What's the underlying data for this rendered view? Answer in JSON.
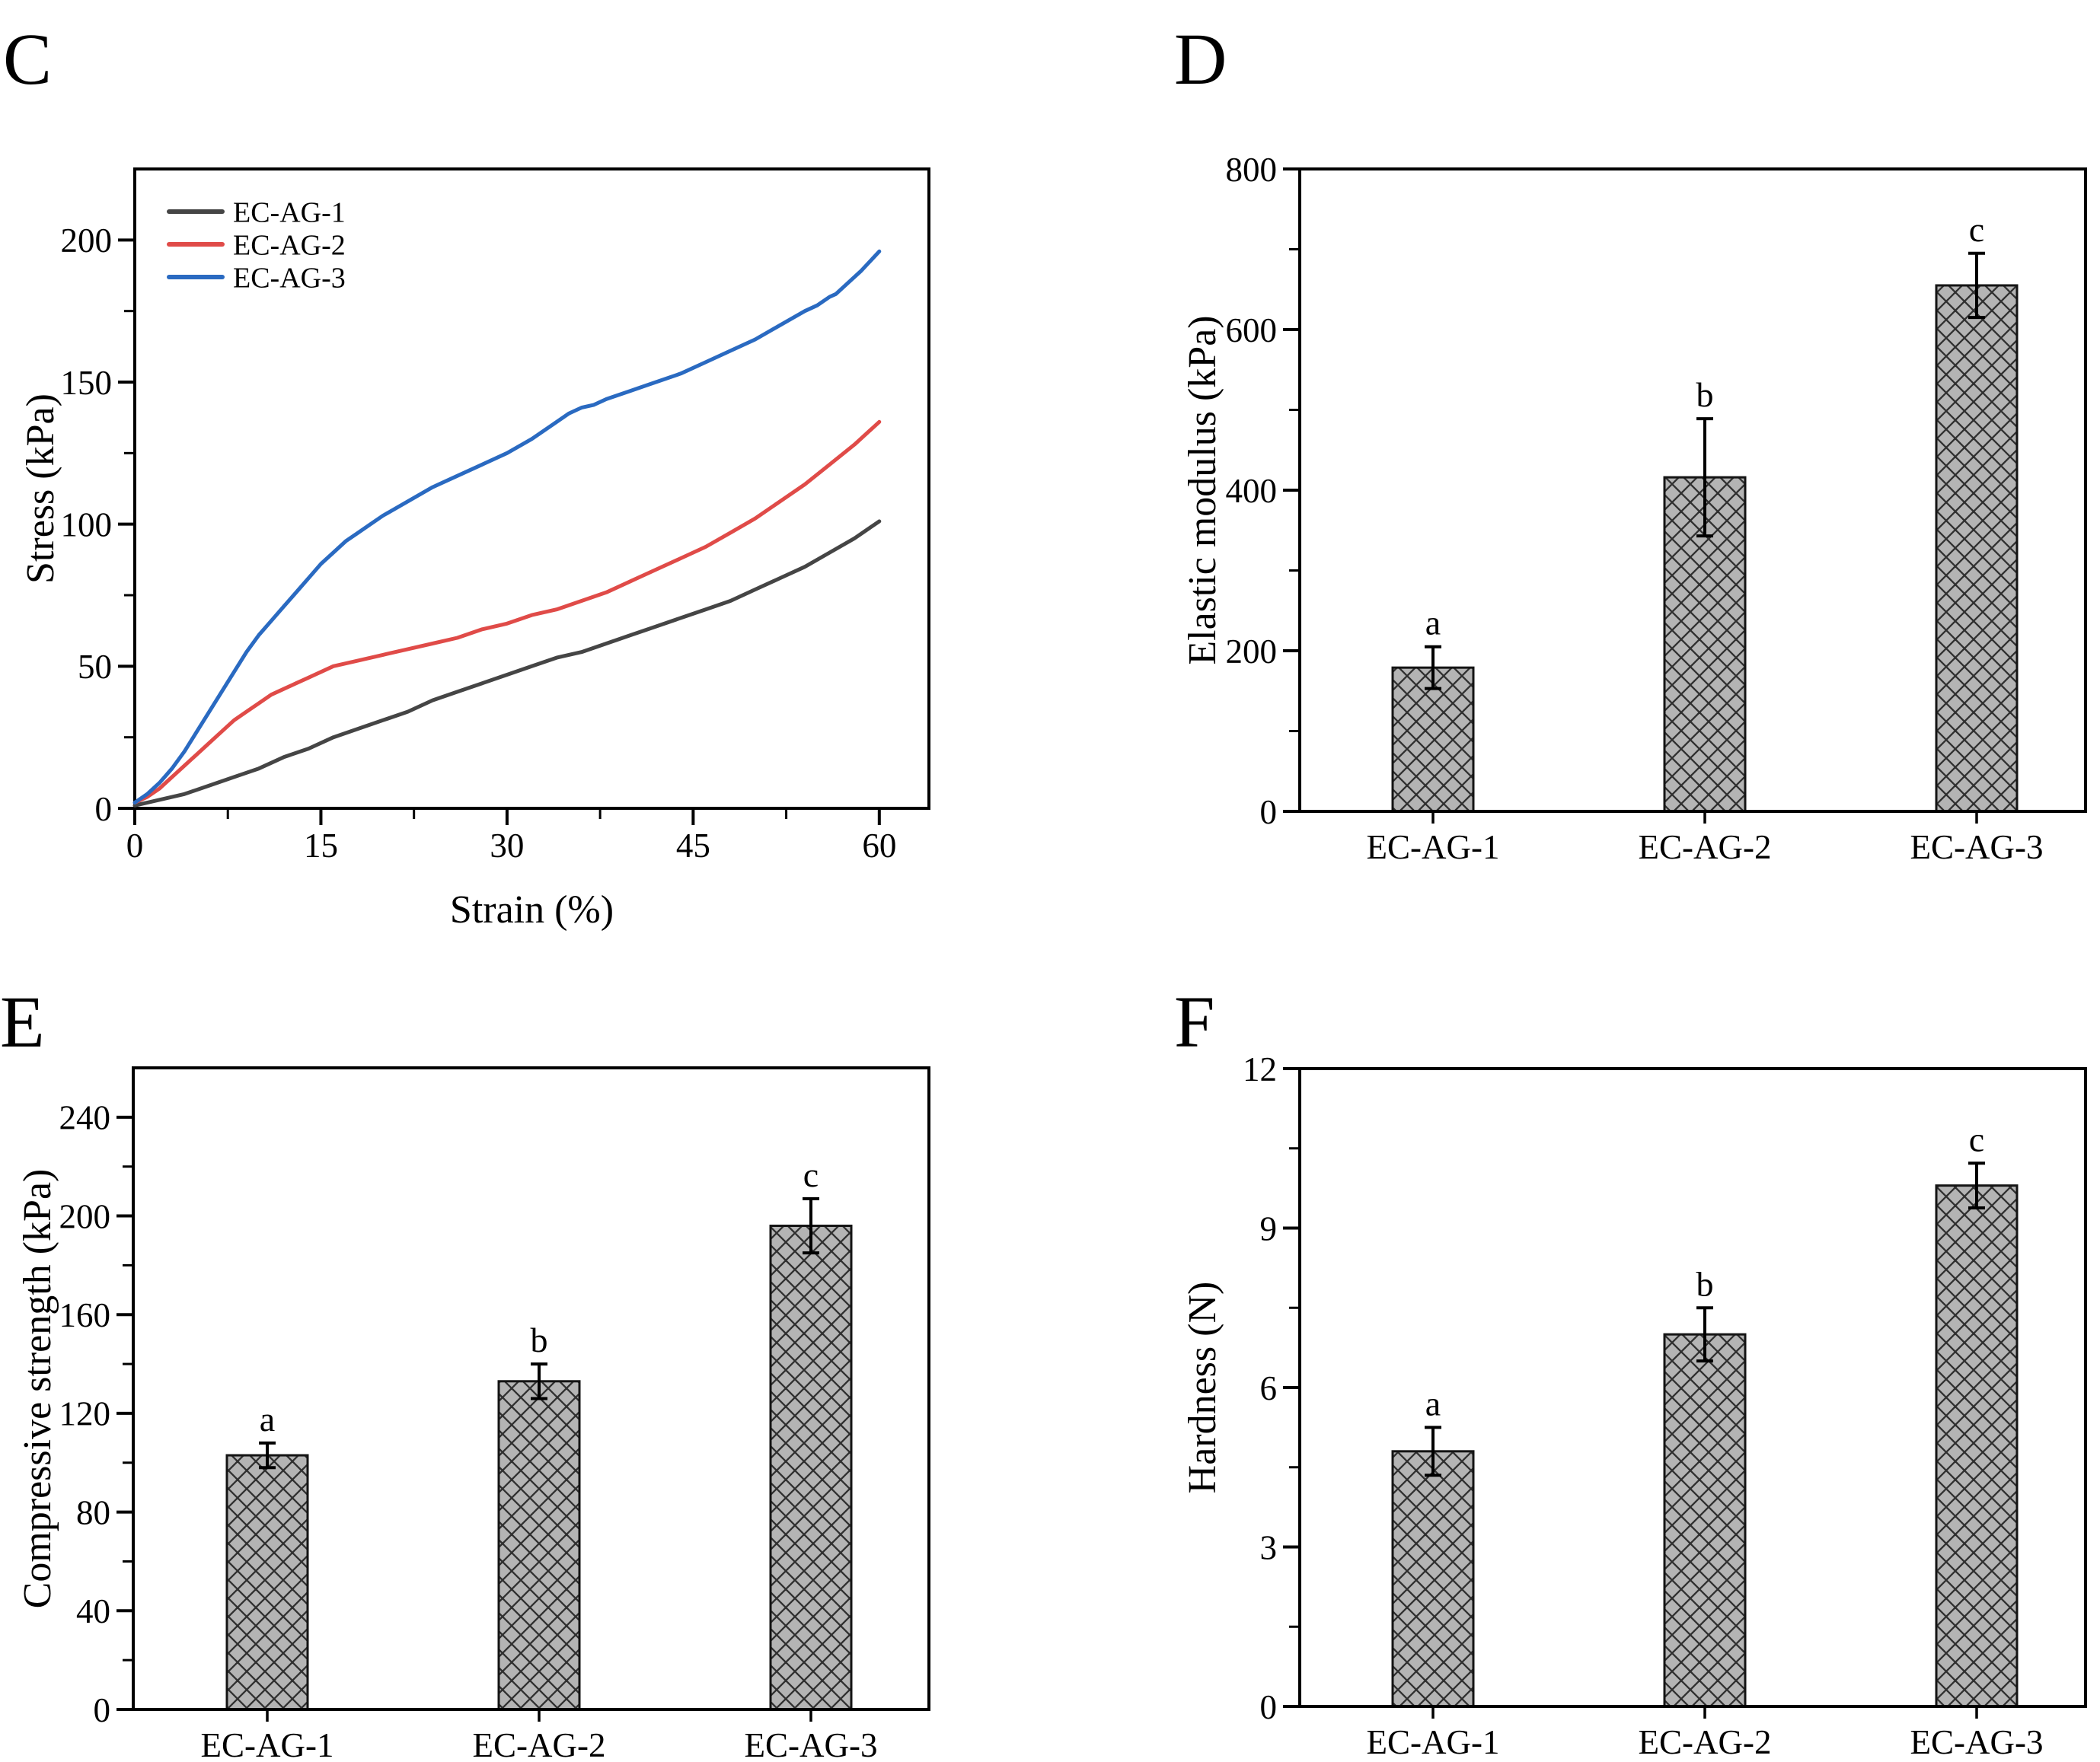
{
  "figure": {
    "background": "#ffffff",
    "axis_color": "#000000",
    "bar_fill": "#b4b4b4",
    "bar_hatch_color": "#303030",
    "bar_stroke": "#141414",
    "error_bar_color": "#000000"
  },
  "chart_data": [
    {
      "id": "C",
      "panel_letter": "C",
      "type": "line",
      "xlabel": "Strain (%)",
      "ylabel": "Stress (kPa)",
      "xlim": [
        0,
        64
      ],
      "ylim": [
        0,
        225
      ],
      "xticks": [
        0,
        15,
        30,
        45,
        60
      ],
      "yticks": [
        0,
        50,
        100,
        150,
        200
      ],
      "xminor_step": 7.5,
      "yminor_step": 25,
      "grid": false,
      "legend_position": "top-left",
      "legend": [
        {
          "label": "EC-AG-1",
          "color": "#454545"
        },
        {
          "label": "EC-AG-2",
          "color": "#e04b48"
        },
        {
          "label": "EC-AG-3",
          "color": "#2a6ac1"
        }
      ],
      "series": [
        {
          "name": "EC-AG-1",
          "color": "#454545",
          "x": [
            0,
            2,
            4,
            6,
            8,
            10,
            12,
            14,
            16,
            18,
            20,
            22,
            24,
            26,
            28,
            30,
            32,
            34,
            36,
            38,
            40,
            42,
            44,
            46,
            48,
            50,
            52,
            54,
            56,
            58,
            60
          ],
          "y": [
            1,
            3,
            5,
            8,
            11,
            14,
            18,
            21,
            25,
            28,
            31,
            34,
            38,
            41,
            44,
            47,
            50,
            53,
            55,
            58,
            61,
            64,
            67,
            70,
            73,
            77,
            81,
            85,
            90,
            95,
            101
          ]
        },
        {
          "name": "EC-AG-2",
          "color": "#e04b48",
          "x": [
            0,
            1,
            2,
            3,
            4,
            5,
            6,
            7,
            8,
            9,
            10,
            11,
            12,
            13,
            14,
            15,
            16,
            18,
            20,
            22,
            24,
            26,
            28,
            30,
            32,
            34,
            36,
            38,
            40,
            42,
            44,
            46,
            48,
            50,
            52,
            54,
            56,
            58,
            60
          ],
          "y": [
            2,
            4,
            7,
            11,
            15,
            19,
            23,
            27,
            31,
            34,
            37,
            40,
            42,
            44,
            46,
            48,
            50,
            52,
            54,
            56,
            58,
            60,
            63,
            65,
            68,
            70,
            73,
            76,
            80,
            84,
            88,
            92,
            97,
            102,
            108,
            114,
            121,
            128,
            136
          ]
        },
        {
          "name": "EC-AG-3",
          "color": "#2a6ac1",
          "x": [
            0,
            1,
            2,
            3,
            4,
            5,
            6,
            7,
            8,
            9,
            10,
            11,
            12,
            13,
            14,
            15,
            16,
            17,
            18,
            19,
            20,
            22,
            24,
            26,
            28,
            30,
            32,
            34,
            35,
            36,
            37,
            38,
            40,
            42,
            44,
            46,
            48,
            50,
            52,
            54,
            55,
            56,
            56.5,
            57.5,
            58.5,
            60
          ],
          "y": [
            2,
            5,
            9,
            14,
            20,
            27,
            34,
            41,
            48,
            55,
            61,
            66,
            71,
            76,
            81,
            86,
            90,
            94,
            97,
            100,
            103,
            108,
            113,
            117,
            121,
            125,
            130,
            136,
            139,
            141,
            142,
            144,
            147,
            150,
            153,
            157,
            161,
            165,
            170,
            175,
            177,
            180,
            181,
            185,
            189,
            196
          ]
        }
      ]
    },
    {
      "id": "D",
      "panel_letter": "D",
      "type": "bar",
      "xlabel": "",
      "ylabel": "Elastic modulus (kPa)",
      "ylim": [
        0,
        800
      ],
      "yticks": [
        0,
        200,
        400,
        600,
        800
      ],
      "yminor_step": 100,
      "grid": false,
      "categories": [
        "EC-AG-1",
        "EC-AG-2",
        "EC-AG-3"
      ],
      "values": [
        179,
        416,
        655
      ],
      "errors": [
        26,
        73,
        40
      ],
      "sig_letters": [
        "a",
        "b",
        "c"
      ],
      "hatch": "diagonal-cross"
    },
    {
      "id": "E",
      "panel_letter": "E",
      "type": "bar",
      "xlabel": "",
      "ylabel": "Compressive strength (kPa)",
      "ylim": [
        0,
        260
      ],
      "yticks": [
        0,
        40,
        80,
        120,
        160,
        200,
        240
      ],
      "yminor_step": 20,
      "grid": false,
      "categories": [
        "EC-AG-1",
        "EC-AG-2",
        "EC-AG-3"
      ],
      "values": [
        103,
        133,
        196
      ],
      "errors": [
        5,
        7,
        11
      ],
      "sig_letters": [
        "a",
        "b",
        "c"
      ],
      "hatch": "diagonal-cross"
    },
    {
      "id": "F",
      "panel_letter": "F",
      "type": "bar",
      "xlabel": "",
      "ylabel": "Hardness (N)",
      "ylim": [
        0,
        12
      ],
      "yticks": [
        0,
        3,
        6,
        9,
        12
      ],
      "yminor_step": 1.5,
      "grid": false,
      "categories": [
        "EC-AG-1",
        "EC-AG-2",
        "EC-AG-3"
      ],
      "values": [
        4.8,
        7.0,
        9.8
      ],
      "errors": [
        0.45,
        0.5,
        0.42
      ],
      "sig_letters": [
        "a",
        "b",
        "c"
      ],
      "hatch": "diagonal-cross"
    }
  ]
}
